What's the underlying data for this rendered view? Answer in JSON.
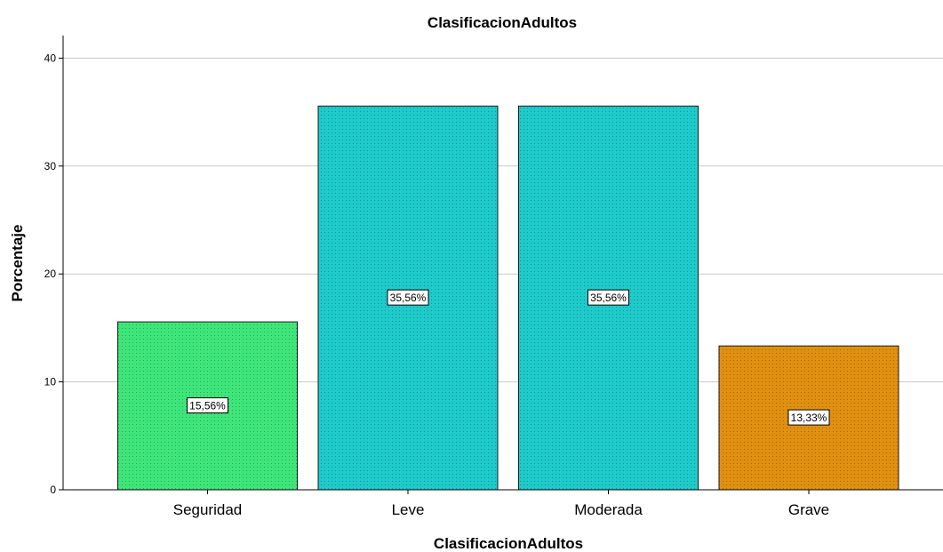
{
  "chart_data": {
    "type": "bar",
    "title": "ClasificacionAdultos",
    "xlabel": "ClasificacionAdultos",
    "ylabel": "Porcentaje",
    "categories": [
      "Seguridad",
      "Leve",
      "Moderada",
      "Grave"
    ],
    "values": [
      15.56,
      35.56,
      35.56,
      13.33
    ],
    "data_labels": [
      "15,56%",
      "35,56%",
      "35,56%",
      "13,33%"
    ],
    "colors": [
      "#3ee67a",
      "#1fcaca",
      "#1fcaca",
      "#e09010"
    ],
    "yticks": [
      0,
      10,
      20,
      30,
      40
    ],
    "ylim": [
      0,
      42
    ],
    "grid": true,
    "pattern": "dotted"
  }
}
